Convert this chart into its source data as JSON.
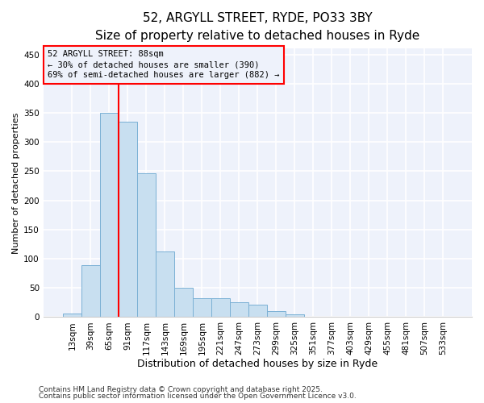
{
  "title_line1": "52, ARGYLL STREET, RYDE, PO33 3BY",
  "title_line2": "Size of property relative to detached houses in Ryde",
  "xlabel": "Distribution of detached houses by size in Ryde",
  "ylabel": "Number of detached properties",
  "bar_labels": [
    "13sqm",
    "39sqm",
    "65sqm",
    "91sqm",
    "117sqm",
    "143sqm",
    "169sqm",
    "195sqm",
    "221sqm",
    "247sqm",
    "273sqm",
    "299sqm",
    "325sqm",
    "351sqm",
    "377sqm",
    "403sqm",
    "429sqm",
    "455sqm",
    "481sqm",
    "507sqm",
    "533sqm"
  ],
  "bar_values": [
    6,
    89,
    350,
    335,
    247,
    113,
    50,
    32,
    32,
    25,
    21,
    10,
    4,
    1,
    1,
    1,
    0,
    0,
    0,
    0,
    0
  ],
  "bar_color": "#c8dff0",
  "bar_edge_color": "#7ab0d4",
  "vline_color": "red",
  "vline_position": 2.5,
  "ylim": [
    0,
    460
  ],
  "yticks": [
    0,
    50,
    100,
    150,
    200,
    250,
    300,
    350,
    400,
    450
  ],
  "annotation_line1": "52 ARGYLL STREET: 88sqm",
  "annotation_line2": "← 30% of detached houses are smaller (390)",
  "annotation_line3": "69% of semi-detached houses are larger (882) →",
  "annotation_box_color": "red",
  "footer_line1": "Contains HM Land Registry data © Crown copyright and database right 2025.",
  "footer_line2": "Contains public sector information licensed under the Open Government Licence v3.0.",
  "background_color": "#ffffff",
  "plot_bg_color": "#eef2fb",
  "grid_color": "#ffffff",
  "title_fontsize": 11,
  "subtitle_fontsize": 9,
  "xlabel_fontsize": 9,
  "ylabel_fontsize": 8,
  "tick_fontsize": 7.5,
  "footer_fontsize": 6.5
}
